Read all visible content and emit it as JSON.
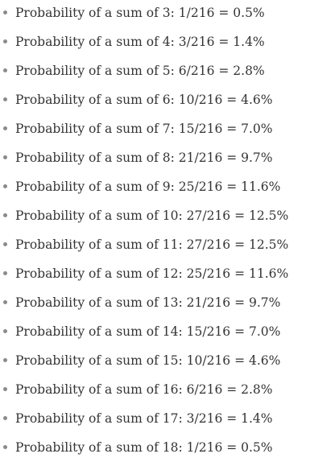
{
  "list": {
    "items": [
      "Probability of a sum of 3: 1/216 = 0.5%",
      "Probability of a sum of 4: 3/216 = 1.4%",
      "Probability of a sum of 5: 6/216 = 2.8%",
      "Probability of a sum of 6: 10/216 = 4.6%",
      "Probability of a sum of 7: 15/216 = 7.0%",
      "Probability of a sum of 8: 21/216 = 9.7%",
      "Probability of a sum of 9: 25/216 = 11.6%",
      "Probability of a sum of 10: 27/216 = 12.5%",
      "Probability of a sum of 11: 27/216 = 12.5%",
      "Probability of a sum of 12: 25/216 = 11.6%",
      "Probability of a sum of 13: 21/216 = 9.7%",
      "Probability of a sum of 14: 15/216 = 7.0%",
      "Probability of a sum of 15: 10/216 = 4.6%",
      "Probability of a sum of 16: 6/216 = 2.8%",
      "Probability of a sum of 17: 3/216 = 1.4%",
      "Probability of a sum of 18: 1/216 = 0.5%"
    ]
  },
  "colors": {
    "text": "#333333",
    "bullet": "#8a8a8a",
    "background": "#ffffff"
  },
  "icons": {
    "bullet": "bullet-dot-icon"
  }
}
